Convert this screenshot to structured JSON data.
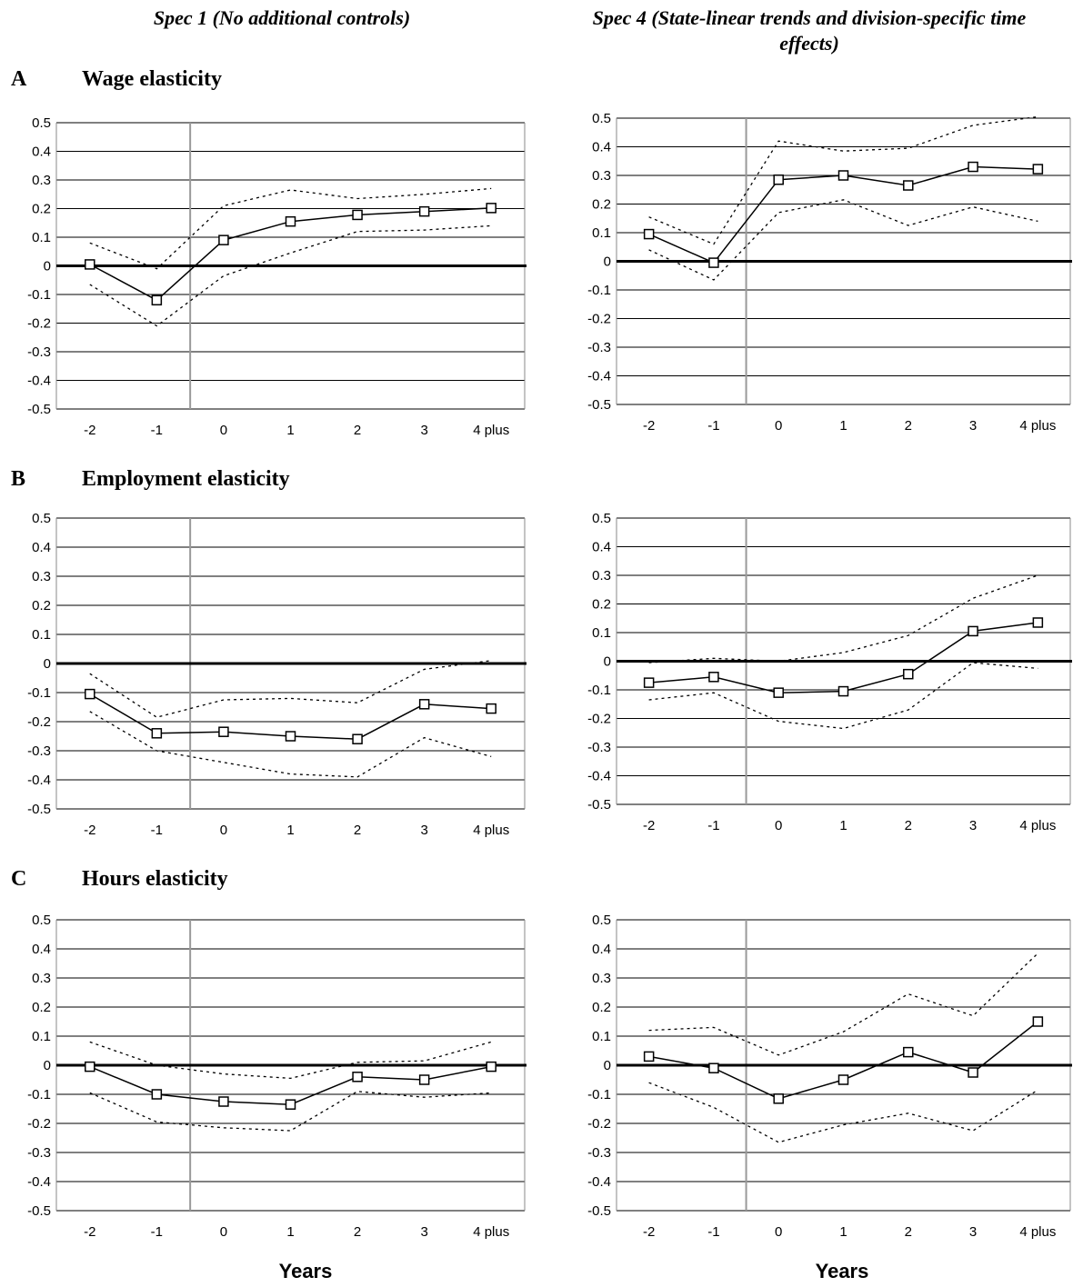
{
  "header": {
    "left_title": "Spec 1 (No additional controls)",
    "right_title": "Spec 4 (State-linear trends and division-specific time effects)"
  },
  "panels": [
    {
      "letter": "A",
      "title": "Wage elasticity"
    },
    {
      "letter": "B",
      "title": "Employment elasticity"
    },
    {
      "letter": "C",
      "title": "Hours elasticity"
    }
  ],
  "xlabel": "Years",
  "chart_data": [
    {
      "type": "line",
      "panel": "A",
      "spec": "Spec 1",
      "categories": [
        "-2",
        "-1",
        "0",
        "1",
        "2",
        "3",
        "4 plus"
      ],
      "yticks": [
        "0.5",
        "0.4",
        "0.3",
        "0.2",
        "0.1",
        "0",
        "-0.1",
        "-0.2",
        "-0.3",
        "-0.4",
        "-0.5"
      ],
      "ylim": [
        -0.5,
        0.5
      ],
      "grid": true,
      "series": [
        {
          "role": "estimate",
          "values": [
            0.005,
            -0.12,
            0.09,
            0.155,
            0.178,
            0.19,
            0.202
          ]
        },
        {
          "role": "upper",
          "values": [
            0.08,
            -0.01,
            0.21,
            0.265,
            0.235,
            0.25,
            0.27
          ]
        },
        {
          "role": "lower",
          "values": [
            -0.065,
            -0.21,
            -0.035,
            0.045,
            0.12,
            0.125,
            0.14
          ]
        }
      ]
    },
    {
      "type": "line",
      "panel": "A",
      "spec": "Spec 4",
      "categories": [
        "-2",
        "-1",
        "0",
        "1",
        "2",
        "3",
        "4 plus"
      ],
      "yticks": [
        "0.5",
        "0.4",
        "0.3",
        "0.2",
        "0.1",
        "0",
        "-0.1",
        "-0.2",
        "-0.3",
        "-0.4",
        "-0.5"
      ],
      "ylim": [
        -0.5,
        0.5
      ],
      "grid": true,
      "series": [
        {
          "role": "estimate",
          "values": [
            0.095,
            -0.005,
            0.285,
            0.3,
            0.265,
            0.33,
            0.322
          ]
        },
        {
          "role": "upper",
          "values": [
            0.155,
            0.06,
            0.42,
            0.385,
            0.395,
            0.475,
            0.505
          ]
        },
        {
          "role": "lower",
          "values": [
            0.04,
            -0.065,
            0.17,
            0.215,
            0.125,
            0.19,
            0.14
          ]
        }
      ]
    },
    {
      "type": "line",
      "panel": "B",
      "spec": "Spec 1",
      "categories": [
        "-2",
        "-1",
        "0",
        "1",
        "2",
        "3",
        "4 plus"
      ],
      "yticks": [
        "0.5",
        "0.4",
        "0.3",
        "0.2",
        "0.1",
        "0",
        "-0.1",
        "-0.2",
        "-0.3",
        "-0.4",
        "-0.5"
      ],
      "ylim": [
        -0.5,
        0.5
      ],
      "grid": true,
      "series": [
        {
          "role": "estimate",
          "values": [
            -0.105,
            -0.24,
            -0.235,
            -0.25,
            -0.26,
            -0.14,
            -0.155
          ]
        },
        {
          "role": "upper",
          "values": [
            -0.035,
            -0.185,
            -0.125,
            -0.12,
            -0.135,
            -0.02,
            0.01
          ]
        },
        {
          "role": "lower",
          "values": [
            -0.165,
            -0.3,
            -0.34,
            -0.38,
            -0.39,
            -0.255,
            -0.32
          ]
        }
      ]
    },
    {
      "type": "line",
      "panel": "B",
      "spec": "Spec 4",
      "categories": [
        "-2",
        "-1",
        "0",
        "1",
        "2",
        "3",
        "4 plus"
      ],
      "yticks": [
        "0.5",
        "0.4",
        "0.3",
        "0.2",
        "0.1",
        "0",
        "-0.1",
        "-0.2",
        "-0.3",
        "-0.4",
        "-0.5"
      ],
      "ylim": [
        -0.5,
        0.5
      ],
      "grid": true,
      "series": [
        {
          "role": "estimate",
          "values": [
            -0.075,
            -0.055,
            -0.11,
            -0.105,
            -0.045,
            0.105,
            0.135
          ]
        },
        {
          "role": "upper",
          "values": [
            -0.005,
            0.01,
            0.0,
            0.03,
            0.09,
            0.22,
            0.3
          ]
        },
        {
          "role": "lower",
          "values": [
            -0.135,
            -0.11,
            -0.21,
            -0.235,
            -0.17,
            -0.005,
            -0.025
          ]
        }
      ]
    },
    {
      "type": "line",
      "panel": "C",
      "spec": "Spec 1",
      "categories": [
        "-2",
        "-1",
        "0",
        "1",
        "2",
        "3",
        "4 plus"
      ],
      "yticks": [
        "0.5",
        "0.4",
        "0.3",
        "0.2",
        "0.1",
        "0",
        "-0.1",
        "-0.2",
        "-0.3",
        "-0.4",
        "-0.5"
      ],
      "ylim": [
        -0.5,
        0.5
      ],
      "grid": true,
      "series": [
        {
          "role": "estimate",
          "values": [
            -0.005,
            -0.1,
            -0.125,
            -0.135,
            -0.04,
            -0.05,
            -0.005
          ]
        },
        {
          "role": "upper",
          "values": [
            0.08,
            0.0,
            -0.03,
            -0.045,
            0.01,
            0.015,
            0.08
          ]
        },
        {
          "role": "lower",
          "values": [
            -0.095,
            -0.195,
            -0.215,
            -0.225,
            -0.09,
            -0.11,
            -0.095
          ]
        }
      ]
    },
    {
      "type": "line",
      "panel": "C",
      "spec": "Spec 4",
      "categories": [
        "-2",
        "-1",
        "0",
        "1",
        "2",
        "3",
        "4 plus"
      ],
      "yticks": [
        "0.5",
        "0.4",
        "0.3",
        "0.2",
        "0.1",
        "0",
        "-0.1",
        "-0.2",
        "-0.3",
        "-0.4",
        "-0.5"
      ],
      "ylim": [
        -0.5,
        0.5
      ],
      "grid": true,
      "series": [
        {
          "role": "estimate",
          "values": [
            0.03,
            -0.01,
            -0.115,
            -0.05,
            0.045,
            -0.025,
            0.15
          ]
        },
        {
          "role": "upper",
          "values": [
            0.12,
            0.13,
            0.035,
            0.115,
            0.245,
            0.17,
            0.385
          ]
        },
        {
          "role": "lower",
          "values": [
            -0.06,
            -0.145,
            -0.265,
            -0.205,
            -0.165,
            -0.225,
            -0.085
          ]
        }
      ]
    }
  ]
}
